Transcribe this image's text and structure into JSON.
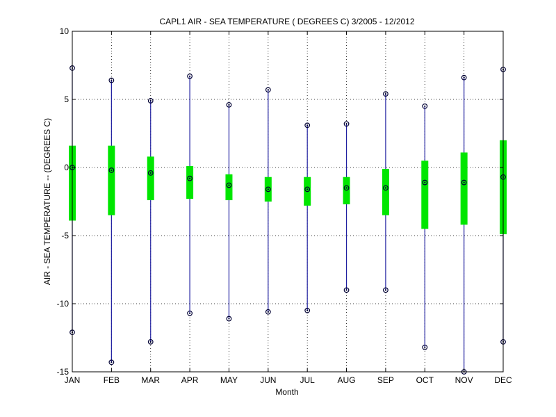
{
  "chart_data": {
    "type": "box",
    "title": "CAPL1  AIR - SEA TEMPERATURE ( DEGREES C) 3/2005 - 12/2012",
    "xlabel": "Month",
    "ylabel": "AIR - SEA TEMPERATURE -- (DEGREES C)",
    "categories": [
      "JAN",
      "FEB",
      "MAR",
      "APR",
      "MAY",
      "JUN",
      "JUL",
      "AUG",
      "SEP",
      "OCT",
      "NOV",
      "DEC"
    ],
    "ylim": [
      -15,
      10
    ],
    "yticks": [
      -15,
      -10,
      -5,
      0,
      5,
      10
    ],
    "grid": true,
    "max": [
      7.3,
      6.4,
      4.9,
      6.7,
      4.6,
      5.7,
      3.1,
      3.2,
      5.4,
      4.5,
      6.6,
      7.2
    ],
    "q3": [
      1.6,
      1.6,
      0.8,
      0.1,
      -0.5,
      -0.7,
      -0.7,
      -0.7,
      -0.1,
      0.5,
      1.1,
      2.0
    ],
    "median": [
      0.0,
      -0.2,
      -0.4,
      -0.8,
      -1.3,
      -1.6,
      -1.6,
      -1.5,
      -1.5,
      -1.1,
      -1.1,
      -0.7
    ],
    "q1": [
      -3.9,
      -3.5,
      -2.4,
      -2.3,
      -2.4,
      -2.5,
      -2.8,
      -2.7,
      -3.5,
      -4.5,
      -4.2,
      -4.9
    ],
    "min": [
      -12.1,
      -14.3,
      -12.8,
      -10.7,
      -11.1,
      -10.6,
      -10.5,
      -9.0,
      -9.0,
      -13.2,
      -15.0,
      -12.8
    ],
    "colors": {
      "whisker": "#1f1fa0",
      "box": "#00e600",
      "marker": "#000033"
    }
  }
}
